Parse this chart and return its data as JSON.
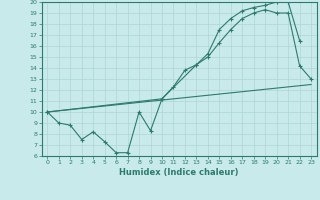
{
  "title": "",
  "xlabel": "Humidex (Indice chaleur)",
  "bg_color": "#c8eaea",
  "line_color": "#2d7a6e",
  "grid_color": "#b0d4d4",
  "xlim": [
    -0.5,
    23.5
  ],
  "ylim": [
    6,
    20
  ],
  "xticks": [
    0,
    1,
    2,
    3,
    4,
    5,
    6,
    7,
    8,
    9,
    10,
    11,
    12,
    13,
    14,
    15,
    16,
    17,
    18,
    19,
    20,
    21,
    22,
    23
  ],
  "yticks": [
    6,
    7,
    8,
    9,
    10,
    11,
    12,
    13,
    14,
    15,
    16,
    17,
    18,
    19,
    20
  ],
  "line1_x": [
    0,
    1,
    2,
    3,
    4,
    5,
    6,
    7,
    8,
    9,
    10,
    11,
    12,
    13,
    14,
    15,
    16,
    17,
    18,
    19,
    20,
    21,
    22,
    23
  ],
  "line1_y": [
    10,
    9,
    8.8,
    7.5,
    8.2,
    7.3,
    6.3,
    6.3,
    10.0,
    8.3,
    11.2,
    12.3,
    13.8,
    14.3,
    15.0,
    16.3,
    17.5,
    18.5,
    19.0,
    19.3,
    19.0,
    19.0,
    14.2,
    13.0
  ],
  "line2_x": [
    0,
    10,
    13,
    14,
    15,
    16,
    17,
    18,
    19,
    20,
    21,
    22
  ],
  "line2_y": [
    10,
    11.2,
    14.3,
    15.3,
    17.5,
    18.5,
    19.2,
    19.5,
    19.7,
    20.0,
    20.0,
    16.5
  ],
  "line3_x": [
    0,
    23
  ],
  "line3_y": [
    10,
    12.5
  ]
}
